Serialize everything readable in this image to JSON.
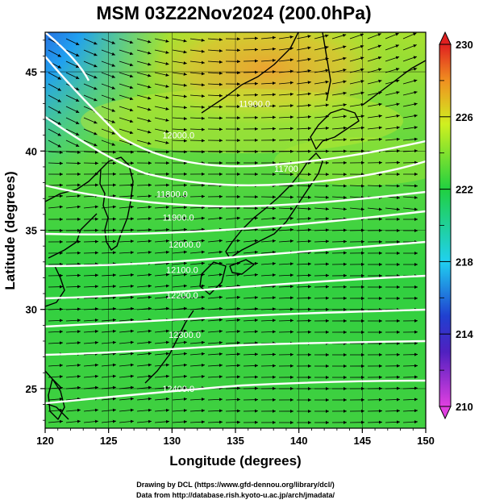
{
  "title": "MSM 03Z22Nov2024 (200.0hPa)",
  "axes": {
    "xlabel": "Longitude (degrees)",
    "ylabel": "Latitude  (degrees)",
    "x_ticks": [
      "120",
      "125",
      "130",
      "135",
      "140",
      "145",
      "150"
    ],
    "y_ticks": [
      "25",
      "30",
      "35",
      "40",
      "45"
    ],
    "x_range": [
      120,
      150
    ],
    "y_range": [
      22.5,
      47.5
    ]
  },
  "colorbar": {
    "ticks": [
      "210",
      "214",
      "218",
      "222",
      "226",
      "230"
    ],
    "range": [
      210,
      230
    ],
    "colors": [
      "#e040e0",
      "#3030c0",
      "#20d0f0",
      "#20d040",
      "#d0f020",
      "#f08020",
      "#e02020"
    ]
  },
  "contours": [
    {
      "label": "11900.0",
      "lon": 136.5,
      "lat": 42.8
    },
    {
      "label": "12000.0",
      "lon": 130.5,
      "lat": 40.8
    },
    {
      "label": "11700",
      "lon": 139.0,
      "lat": 38.7
    },
    {
      "label": "11800.0",
      "lon": 130.0,
      "lat": 37.1
    },
    {
      "label": "11900.0",
      "lon": 130.5,
      "lat": 35.6
    },
    {
      "label": "12000.0",
      "lon": 131.0,
      "lat": 33.9
    },
    {
      "label": "12100.0",
      "lon": 130.8,
      "lat": 32.3
    },
    {
      "label": "12200.0",
      "lon": 130.8,
      "lat": 30.7
    },
    {
      "label": "12300.0",
      "lon": 131.0,
      "lat": 28.2
    },
    {
      "label": "12400.0",
      "lon": 130.5,
      "lat": 24.8
    }
  ],
  "credits": {
    "line1": "Drawing by DCL (https://www.gfd-dennou.org/library/dcl/)",
    "line2": "Data from http://database.rish.kyoto-u.ac.jp/arch/jmadata/"
  }
}
